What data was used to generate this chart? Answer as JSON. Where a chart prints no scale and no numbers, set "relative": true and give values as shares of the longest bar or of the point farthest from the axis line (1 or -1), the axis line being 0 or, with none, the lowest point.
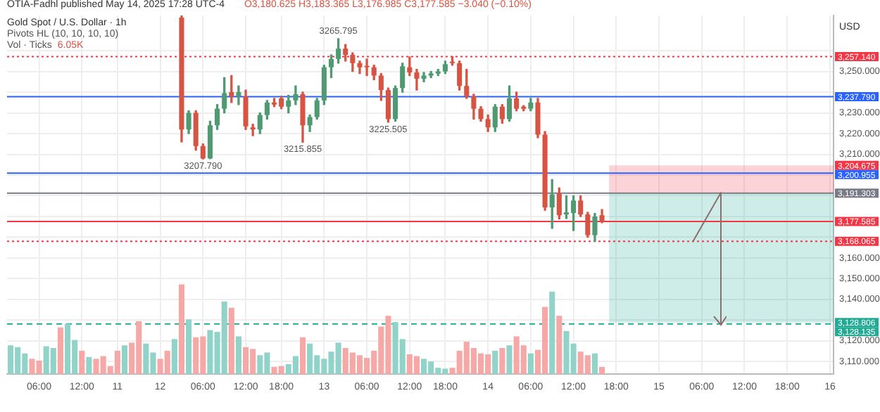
{
  "chart_data": [
    {
      "type": "candlestick",
      "title": "Gold Spot / U.S. Dollar · 1h",
      "subtitle": "O3,180.625 H3,183.365 L3,176.985 C3,177.585 −3.040 (−0.10%)",
      "ylabel": "USD",
      "annotations": [
        "OTIA-Fadhl published May 14, 2025 17:28 UTC-4",
        "Pivots HL (10, 10, 10, 10)",
        {
          "text": "3207.790",
          "y": 3207.79
        },
        {
          "text": "3215.855",
          "y": 3215.855
        },
        {
          "text": "3225.505",
          "y": 3225.505
        },
        {
          "text": "3265.795",
          "y": 3265.795
        }
      ],
      "categories": [
        null,
        null,
        null,
        null,
        "06:00",
        null,
        null,
        null,
        null,
        null,
        "12:00",
        null,
        null,
        null,
        null,
        "11",
        null,
        null,
        null,
        null,
        null,
        "12",
        null,
        null,
        null,
        null,
        null,
        "06:00",
        null,
        null,
        null,
        null,
        null,
        "12:00",
        null,
        null,
        null,
        null,
        "18:00",
        null,
        null,
        null,
        null,
        null,
        "13",
        null,
        null,
        null,
        null,
        null,
        "06:00",
        null,
        null,
        null,
        null,
        null,
        "12:00",
        null,
        null,
        null,
        null,
        "18:00",
        null,
        null,
        null,
        null,
        null,
        "14",
        null,
        null,
        null,
        null,
        null,
        "06:00",
        null,
        null,
        null,
        null,
        null,
        "12:00",
        null,
        null,
        null,
        null,
        null,
        "18:00",
        null,
        null,
        null,
        null,
        null,
        "15",
        null,
        null,
        null,
        null,
        null,
        "06:00",
        null,
        null,
        null,
        null,
        null,
        "12:00",
        null,
        null,
        null,
        null,
        null,
        "18:00",
        null,
        null,
        null,
        null,
        null,
        "16"
      ],
      "ohlc": [
        null,
        null,
        null,
        null,
        null,
        null,
        null,
        null,
        null,
        null,
        null,
        null,
        null,
        null,
        null,
        null,
        null,
        null,
        null,
        null,
        null,
        null,
        null,
        null,
        [
          3276,
          3277,
          3216,
          3222
        ],
        [
          3222,
          3231,
          3220,
          3230
        ],
        [
          3230,
          3231,
          3212,
          3214
        ],
        [
          3214,
          3215,
          3207.79,
          3208
        ],
        [
          3208,
          3226,
          3207.9,
          3224
        ],
        [
          3224,
          3234,
          3222,
          3232
        ],
        [
          3232,
          3247,
          3230,
          3239.5
        ],
        [
          3240,
          3248,
          3235,
          3238
        ],
        [
          3238,
          3243,
          3234,
          3240
        ],
        [
          3238,
          3241,
          3222,
          3223.5
        ],
        [
          3223,
          3224.5,
          3219,
          3222
        ],
        [
          3222,
          3230,
          3220,
          3229
        ],
        [
          3229,
          3236,
          3227,
          3235
        ],
        [
          3235,
          3237,
          3233,
          3234
        ],
        [
          3237,
          3238,
          3232,
          3233
        ],
        [
          3233,
          3238.5,
          3230,
          3236
        ],
        [
          3236,
          3243,
          3234,
          3239
        ],
        [
          3239,
          3240,
          3215.855,
          3224
        ],
        [
          3224,
          3229,
          3221,
          3228
        ],
        [
          3228,
          3237,
          3227,
          3236
        ],
        [
          3236,
          3253,
          3234,
          3252
        ],
        [
          3252,
          3258,
          3247,
          3256
        ],
        [
          3256,
          3265.795,
          3254,
          3261
        ],
        [
          3261,
          3263,
          3255,
          3258
        ],
        [
          3258,
          3259,
          3250,
          3254
        ],
        [
          3254,
          3255,
          3249,
          3252
        ],
        [
          3252.5,
          3256,
          3248,
          3252
        ],
        [
          3252,
          3253,
          3246,
          3248
        ],
        [
          3248,
          3249,
          3236,
          3241
        ],
        [
          3241,
          3242,
          3225.505,
          3227
        ],
        [
          3227,
          3243,
          3226,
          3242
        ],
        [
          3242,
          3254,
          3240,
          3252.5
        ],
        [
          3252,
          3257,
          3248,
          3249.5
        ],
        [
          3249.5,
          3251,
          3241,
          3246.5
        ],
        [
          3246.5,
          3249.5,
          3245,
          3248
        ],
        [
          3248,
          3250,
          3247,
          3249
        ],
        [
          3249,
          3251,
          3248,
          3250
        ],
        [
          3250,
          3255,
          3249,
          3253.5
        ],
        [
          3254.5,
          3257.14,
          3253,
          3254
        ],
        [
          3254,
          3255,
          3241,
          3243
        ],
        [
          3243,
          3251,
          3237,
          3238
        ],
        [
          3238,
          3239,
          3227,
          3232
        ],
        [
          3232,
          3233,
          3226,
          3227
        ],
        [
          3227,
          3229,
          3221,
          3223
        ],
        [
          3223,
          3234,
          3221,
          3233
        ],
        [
          3233,
          3234,
          3225,
          3227
        ],
        [
          3227,
          3243,
          3226,
          3237
        ],
        [
          3237,
          3240,
          3231,
          3232
        ],
        [
          3233,
          3233.5,
          3231,
          3232
        ],
        [
          3232,
          3237,
          3231,
          3235
        ],
        [
          3235,
          3237,
          3218,
          3219.5
        ],
        [
          3219.5,
          3221,
          3183,
          3184.4
        ],
        [
          3184.4,
          3197.8,
          3174.3,
          3190.6
        ],
        [
          3191,
          3193.8,
          3178.8,
          3180.6
        ],
        [
          3181,
          3190,
          3179,
          3182
        ],
        [
          3181.7,
          3190,
          3173.2,
          3187.7
        ],
        [
          3187.7,
          3190,
          3180,
          3181
        ],
        [
          3181,
          3182,
          3170,
          3171
        ],
        [
          3171,
          3181.5,
          3168.065,
          3180
        ],
        [
          3180.625,
          3183.365,
          3176.985,
          3177.585
        ],
        null,
        null,
        null,
        null,
        null,
        null,
        null,
        null,
        null,
        null,
        null,
        null,
        null,
        null,
        null,
        null,
        null,
        null,
        null,
        null,
        null,
        null,
        null,
        null,
        null,
        null,
        null,
        null,
        null,
        null,
        null,
        null
      ],
      "colors": [
        null,
        null,
        null,
        null,
        null,
        null,
        null,
        null,
        null,
        null,
        null,
        null,
        null,
        null,
        null,
        null,
        null,
        null,
        null,
        null,
        null,
        null,
        null,
        null,
        "#d75442",
        "#4f9a72",
        "#d75442",
        "#d75442",
        "#4f9a72",
        "#4f9a72",
        "#4f9a72",
        "#d75442",
        "#4f9a72",
        "#d75442",
        "#d75442",
        "#4f9a72",
        "#4f9a72",
        "#d75442",
        "#d75442",
        "#4f9a72",
        "#4f9a72",
        "#d75442",
        "#4f9a72",
        "#4f9a72",
        "#4f9a72",
        "#4f9a72",
        "#4f9a72",
        "#d75442",
        "#d75442",
        "#d75442",
        "#d75442",
        "#d75442",
        "#d75442",
        "#d75442",
        "#4f9a72",
        "#4f9a72",
        "#d75442",
        "#d75442",
        "#4f9a72",
        "#4f9a72",
        "#4f9a72",
        "#4f9a72",
        "#d75442",
        "#d75442",
        "#d75442",
        "#d75442",
        "#d75442",
        "#d75442",
        "#4f9a72",
        "#d75442",
        "#4f9a72",
        "#d75442",
        "#d75442",
        "#4f9a72",
        "#d75442",
        "#d75442",
        "#4f9a72",
        "#d75442",
        "#4f9a72",
        "#4f9a72",
        "#d75442",
        "#d75442",
        "#4f9a72",
        "#d75442",
        null,
        null,
        null,
        null,
        null,
        null,
        null,
        null,
        null,
        null,
        null,
        null,
        null,
        null,
        null,
        null,
        null,
        null,
        null,
        null,
        null,
        null,
        null,
        null,
        null,
        null,
        null,
        null,
        null,
        null,
        null,
        null
      ],
      "ylim": [
        3104,
        3277
      ],
      "yticks": [
        {
          "value": 3110,
          "label": "3,110.000"
        },
        {
          "value": 3120,
          "label": "3,120.000"
        },
        {
          "value": 3130,
          "label": null
        },
        {
          "value": 3140,
          "label": "3,140.000"
        },
        {
          "value": 3150,
          "label": "3,150.000"
        },
        {
          "value": 3160,
          "label": "3,160.000"
        },
        {
          "value": 3170,
          "label": null
        },
        {
          "value": 3180,
          "label": null
        },
        {
          "value": 3190,
          "label": null
        },
        {
          "value": 3200,
          "label": null
        },
        {
          "value": 3210,
          "label": "3,210.000"
        },
        {
          "value": 3220,
          "label": "3,220.000"
        },
        {
          "value": 3230,
          "label": "3,230.000"
        },
        {
          "value": 3240,
          "label": null
        },
        {
          "value": 3250,
          "label": "3,250.000"
        },
        {
          "value": 3260,
          "label": null
        }
      ],
      "grid": true,
      "ref_lines": [
        {
          "axis": "y",
          "value": 3257.14,
          "label": "3,257.140",
          "color": "#f23645",
          "line_style": "dotted"
        },
        {
          "axis": "y",
          "value": 3237.79,
          "label": "3,237.790",
          "color": "#2962ff",
          "line_style": "solid"
        },
        {
          "axis": "y",
          "value": 3200.955,
          "label": "3,200.955",
          "color": "#2962ff",
          "line_style": "solid"
        },
        {
          "axis": "y",
          "value": 3191.303,
          "label": "3,191.303",
          "color": "#787b86",
          "line_style": "solid"
        },
        {
          "axis": "y",
          "value": 3177.585,
          "label": "3,177.585",
          "color": "#f23645",
          "line_style": "solid"
        },
        {
          "axis": "y",
          "value": 3168.065,
          "label": "3,168.065",
          "color": "#f23645",
          "line_style": "dotted"
        },
        {
          "axis": "y",
          "value": 3128.135,
          "label": "3,128.135",
          "color": "#22ab94",
          "line_style": "dashed"
        }
      ],
      "bands": [
        {
          "axis": "y",
          "from": 3204.675,
          "to": 3191.303,
          "label": "3,204.675",
          "color": "#f23645"
        },
        {
          "axis": "y",
          "from": 3128.806,
          "to": 3191.303,
          "label": "3,128.806",
          "color": "#22ab94"
        }
      ]
    },
    {
      "type": "bar",
      "relative": true,
      "annotations": [
        "Vol · Ticks",
        "6.05K"
      ],
      "categories": [
        null,
        null,
        null,
        null,
        null,
        null,
        null,
        null,
        null,
        null,
        null,
        null,
        null,
        null,
        null,
        null,
        null,
        null,
        null,
        null,
        null,
        null,
        null,
        null,
        null,
        null,
        null,
        null,
        null,
        null,
        null,
        null,
        null,
        null,
        null,
        null,
        null,
        null,
        null,
        null,
        null,
        null,
        null,
        null,
        null,
        null,
        null,
        null,
        null,
        null,
        null,
        null,
        null,
        null,
        null,
        null,
        null,
        null,
        null,
        null,
        null,
        null,
        null,
        null,
        null,
        null,
        null,
        null,
        null,
        null,
        null,
        null,
        null,
        null,
        null,
        null,
        null,
        null,
        null,
        null,
        null,
        null,
        null,
        null,
        null,
        null,
        null,
        null,
        null,
        null,
        null,
        null,
        null,
        null,
        null,
        null,
        null,
        null,
        null,
        null,
        null,
        null,
        null,
        null,
        null,
        null,
        null,
        null,
        null,
        null,
        null,
        null,
        null,
        null,
        null,
        null
      ],
      "values": [
        0.32,
        0.3,
        0.23,
        0.17,
        0.15,
        0.31,
        0.29,
        0.52,
        0.56,
        0.38,
        0.26,
        0.19,
        0.17,
        0.2,
        0.09,
        0.26,
        0.32,
        0.35,
        0.59,
        0.34,
        0.24,
        0.17,
        0.26,
        0.39,
        1,
        0.61,
        0.41,
        0.42,
        0.49,
        0.47,
        0.81,
        0.74,
        0.42,
        0.3,
        0.28,
        0.21,
        0.24,
        0.08,
        0.09,
        0.11,
        0.2,
        0.41,
        0.34,
        0.21,
        0.17,
        0.25,
        0.35,
        0.29,
        0.24,
        0.21,
        0.18,
        0.26,
        0.53,
        0.65,
        0.58,
        0.39,
        0.22,
        0.2,
        0.17,
        0.14,
        0.07,
        0.06,
        0.07,
        0.26,
        0.36,
        0.29,
        0.23,
        0.22,
        0.26,
        0.29,
        0.32,
        0.42,
        0.32,
        0.23,
        0.27,
        0.75,
        0.92,
        0.65,
        0.48,
        0.34,
        0.25,
        0.21,
        0.23,
        0.08,
        null,
        null,
        null,
        null,
        null,
        null,
        null,
        null,
        null,
        null,
        null,
        null,
        null,
        null,
        null,
        null,
        null,
        null,
        null,
        null,
        null,
        null,
        null,
        null,
        null,
        null,
        null,
        null,
        null,
        null,
        null,
        null
      ],
      "colors": [
        "#92d3c9",
        "#92d3c9",
        "#92d3c9",
        "#f5a8a6",
        "#f5a8a6",
        "#92d3c9",
        "#92d3c9",
        "#f5a8a6",
        "#92d3c9",
        "#92d3c9",
        "#f5a8a6",
        "#92d3c9",
        "#f5a8a6",
        "#f5a8a6",
        "#f5a8a6",
        "#f5a8a6",
        "#92d3c9",
        "#f5a8a6",
        "#f5a8a6",
        "#92d3c9",
        "#92d3c9",
        "#f5a8a6",
        "#f5a8a6",
        "#92d3c9",
        "#f5a8a6",
        "#92d3c9",
        "#f5a8a6",
        "#f5a8a6",
        "#92d3c9",
        "#92d3c9",
        "#92d3c9",
        "#f5a8a6",
        "#92d3c9",
        "#f5a8a6",
        "#f5a8a6",
        "#92d3c9",
        "#92d3c9",
        "#f5a8a6",
        "#f5a8a6",
        "#92d3c9",
        "#92d3c9",
        "#f5a8a6",
        "#92d3c9",
        "#92d3c9",
        "#92d3c9",
        "#92d3c9",
        "#92d3c9",
        "#f5a8a6",
        "#f5a8a6",
        "#f5a8a6",
        "#f5a8a6",
        "#f5a8a6",
        "#f5a8a6",
        "#f5a8a6",
        "#92d3c9",
        "#92d3c9",
        "#f5a8a6",
        "#f5a8a6",
        "#92d3c9",
        "#92d3c9",
        "#92d3c9",
        "#92d3c9",
        "#f5a8a6",
        "#f5a8a6",
        "#f5a8a6",
        "#f5a8a6",
        "#f5a8a6",
        "#f5a8a6",
        "#92d3c9",
        "#f5a8a6",
        "#92d3c9",
        "#f5a8a6",
        "#f5a8a6",
        "#92d3c9",
        "#f5a8a6",
        "#f5a8a6",
        "#92d3c9",
        "#f5a8a6",
        "#92d3c9",
        "#92d3c9",
        "#f5a8a6",
        "#f5a8a6",
        "#92d3c9",
        "#f5a8a6",
        null,
        null,
        null,
        null,
        null,
        null,
        null,
        null,
        null,
        null,
        null,
        null,
        null,
        null,
        null,
        null,
        null,
        null,
        null,
        null,
        null,
        null,
        null,
        null,
        null,
        null,
        null,
        null,
        null,
        null,
        null,
        null
      ]
    }
  ]
}
